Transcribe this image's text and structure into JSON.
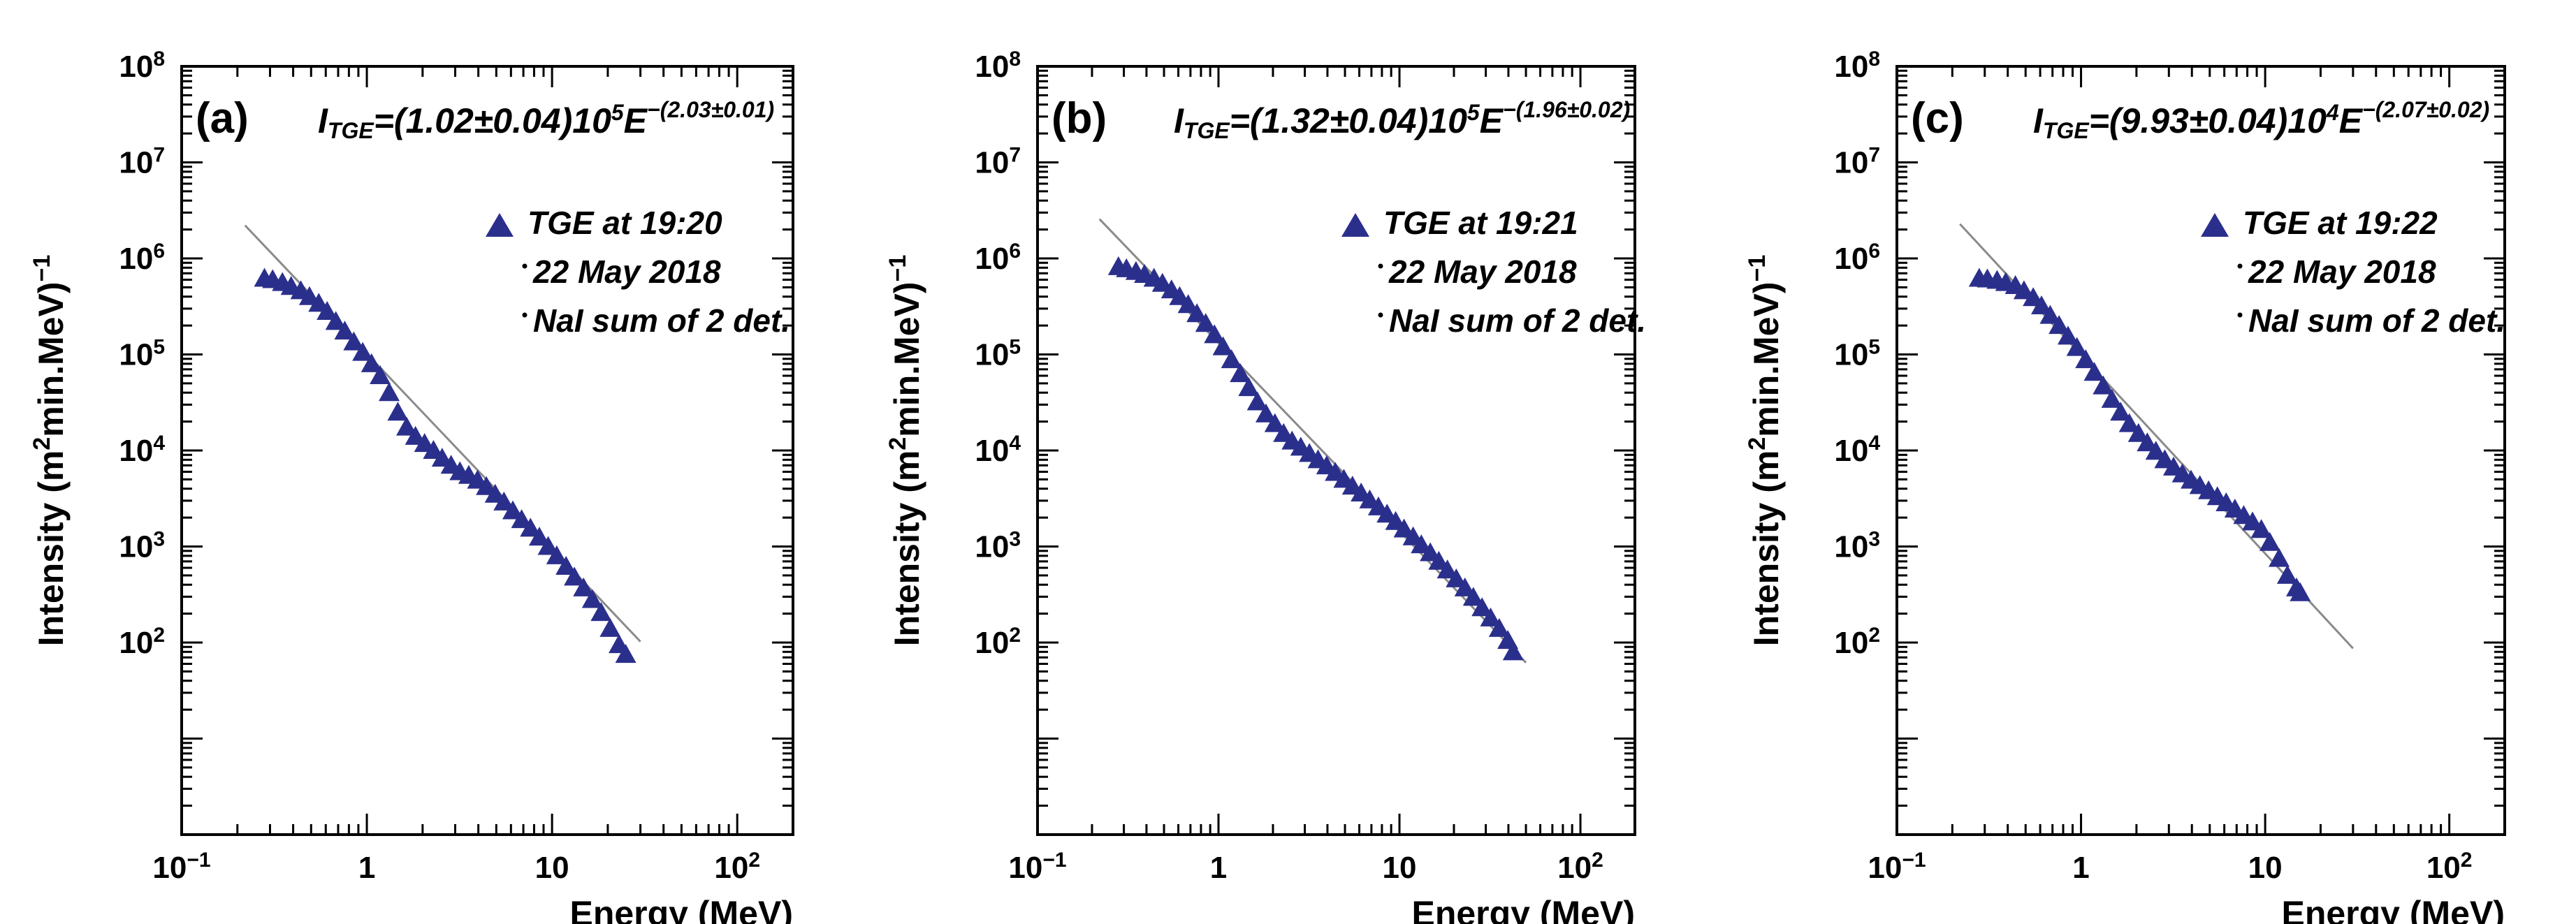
{
  "chart_data": [
    {
      "type": "scatter",
      "panel_label": "(a)",
      "formula": {
        "lhs": "I",
        "lhs_sub": "TGE",
        "body": "=(1.02±0.04)10",
        "exp10": "5",
        "base": "E",
        "exp": "−(2.03±0.01)"
      },
      "legend": {
        "marker_label": "TGE at 19:20",
        "lines": [
          "22 May 2018",
          "NaI sum of 2 det."
        ],
        "placement": "upper-right"
      },
      "xlabel": "Energy (MeV)",
      "ylabel_main": "Intensity (m",
      "ylabel_sup": "2",
      "ylabel_mid": "min.MeV)",
      "ylabel_exp": "−1",
      "x_scale": "log",
      "y_scale": "log",
      "xlim": [
        0.1,
        200
      ],
      "ylim": [
        1,
        100000000
      ],
      "x_ticks": [
        {
          "v": 0.1,
          "base": "10",
          "exp": "−1"
        },
        {
          "v": 1,
          "base": "1",
          "exp": ""
        },
        {
          "v": 10,
          "base": "10",
          "exp": ""
        },
        {
          "v": 100,
          "base": "10",
          "exp": "2"
        }
      ],
      "y_ticks": [
        {
          "v": 100,
          "exp": "2"
        },
        {
          "v": 1000,
          "exp": "3"
        },
        {
          "v": 10000,
          "exp": "4"
        },
        {
          "v": 100000,
          "exp": "5"
        },
        {
          "v": 1000000,
          "exp": "6"
        },
        {
          "v": 10000000,
          "exp": "7"
        },
        {
          "v": 100000000,
          "exp": "8"
        }
      ],
      "fit": {
        "A": 102000,
        "gamma": 2.03,
        "x_range": [
          0.22,
          30
        ]
      },
      "series": [
        {
          "name": "TGE at 19:20",
          "x": [
            0.28,
            0.31,
            0.35,
            0.39,
            0.44,
            0.49,
            0.55,
            0.61,
            0.68,
            0.76,
            0.85,
            0.95,
            1.06,
            1.18,
            1.32,
            1.47,
            1.64,
            1.83,
            2.05,
            2.29,
            2.55,
            2.85,
            3.18,
            3.55,
            3.96,
            4.42,
            4.93,
            5.5,
            6.14,
            6.85,
            7.65,
            8.54,
            9.53,
            10.6,
            11.9,
            13.2,
            14.8,
            16.5,
            18.4,
            20.6,
            23.0,
            25.0
          ],
          "y": [
            620000,
            600000,
            560000,
            510000,
            460000,
            400000,
            340000,
            280000,
            220000,
            175000,
            135000,
            105000,
            80000,
            60000,
            40000,
            25000,
            17500,
            14000,
            11800,
            10000,
            8300,
            7000,
            6000,
            5500,
            4900,
            4200,
            3500,
            2900,
            2350,
            1900,
            1550,
            1250,
            1000,
            800,
            620,
            480,
            370,
            280,
            205,
            140,
            95,
            75
          ]
        }
      ]
    },
    {
      "type": "scatter",
      "panel_label": "(b)",
      "formula": {
        "lhs": "I",
        "lhs_sub": "TGE",
        "body": "=(1.32±0.04)10",
        "exp10": "5",
        "base": "E",
        "exp": "−(1.96±0.02)"
      },
      "legend": {
        "marker_label": "TGE at 19:21",
        "lines": [
          "22 May 2018",
          "NaI sum of 2 det."
        ],
        "placement": "upper-right"
      },
      "xlabel": "Energy (MeV)",
      "ylabel_main": "Intensity (m",
      "ylabel_sup": "2",
      "ylabel_mid": "min.MeV)",
      "ylabel_exp": "−1",
      "x_scale": "log",
      "y_scale": "log",
      "xlim": [
        0.1,
        200
      ],
      "ylim": [
        1,
        100000000
      ],
      "x_ticks": [
        {
          "v": 0.1,
          "base": "10",
          "exp": "−1"
        },
        {
          "v": 1,
          "base": "1",
          "exp": ""
        },
        {
          "v": 10,
          "base": "10",
          "exp": ""
        },
        {
          "v": 100,
          "base": "10",
          "exp": "2"
        }
      ],
      "y_ticks": [
        {
          "v": 100,
          "exp": "2"
        },
        {
          "v": 1000,
          "exp": "3"
        },
        {
          "v": 10000,
          "exp": "4"
        },
        {
          "v": 100000,
          "exp": "5"
        },
        {
          "v": 1000000,
          "exp": "6"
        },
        {
          "v": 10000000,
          "exp": "7"
        },
        {
          "v": 100000000,
          "exp": "8"
        }
      ],
      "fit": {
        "A": 132000,
        "gamma": 1.96,
        "x_range": [
          0.22,
          50
        ]
      },
      "series": [
        {
          "name": "TGE at 19:21",
          "x": [
            0.28,
            0.31,
            0.35,
            0.39,
            0.44,
            0.49,
            0.55,
            0.61,
            0.68,
            0.76,
            0.85,
            0.95,
            1.06,
            1.18,
            1.32,
            1.47,
            1.64,
            1.83,
            2.05,
            2.29,
            2.55,
            2.85,
            3.18,
            3.55,
            3.96,
            4.42,
            4.93,
            5.5,
            6.14,
            6.85,
            7.65,
            8.54,
            9.53,
            10.6,
            11.9,
            13.2,
            14.8,
            16.5,
            18.4,
            20.6,
            23.0,
            25.6,
            28.6,
            31.9,
            35.6,
            39.7,
            42.5
          ],
          "y": [
            820000,
            780000,
            730000,
            680000,
            620000,
            550000,
            470000,
            400000,
            330000,
            265000,
            210000,
            160000,
            120000,
            88000,
            63000,
            45000,
            32000,
            24000,
            19000,
            15000,
            12500,
            10800,
            9300,
            8000,
            6900,
            5900,
            5000,
            4250,
            3600,
            3050,
            2580,
            2170,
            1820,
            1520,
            1260,
            1040,
            860,
            700,
            570,
            460,
            370,
            295,
            230,
            180,
            140,
            105,
            80
          ]
        }
      ]
    },
    {
      "type": "scatter",
      "panel_label": "(c)",
      "formula": {
        "lhs": "I",
        "lhs_sub": "TGE",
        "body": "=(9.93±0.04)10",
        "exp10": "4",
        "base": "E",
        "exp": "−(2.07±0.02)"
      },
      "legend": {
        "marker_label": "TGE at 19:22",
        "lines": [
          "22 May 2018",
          "NaI sum of 2 det."
        ],
        "placement": "upper-right"
      },
      "xlabel": "Energy (MeV)",
      "ylabel_main": "Intensity (m",
      "ylabel_sup": "2",
      "ylabel_mid": "min.MeV)",
      "ylabel_exp": "−1",
      "x_scale": "log",
      "y_scale": "log",
      "xlim": [
        0.1,
        200
      ],
      "ylim": [
        1,
        100000000
      ],
      "x_ticks": [
        {
          "v": 0.1,
          "base": "10",
          "exp": "−1"
        },
        {
          "v": 1,
          "base": "1",
          "exp": ""
        },
        {
          "v": 10,
          "base": "10",
          "exp": ""
        },
        {
          "v": 100,
          "base": "10",
          "exp": "2"
        }
      ],
      "y_ticks": [
        {
          "v": 100,
          "exp": "2"
        },
        {
          "v": 1000,
          "exp": "3"
        },
        {
          "v": 10000,
          "exp": "4"
        },
        {
          "v": 100000,
          "exp": "5"
        },
        {
          "v": 1000000,
          "exp": "6"
        },
        {
          "v": 10000000,
          "exp": "7"
        },
        {
          "v": 100000000,
          "exp": "8"
        }
      ],
      "fit": {
        "A": 99300,
        "gamma": 2.07,
        "x_range": [
          0.22,
          30
        ]
      },
      "series": [
        {
          "name": "TGE at 19:22",
          "x": [
            0.28,
            0.31,
            0.35,
            0.39,
            0.44,
            0.49,
            0.55,
            0.61,
            0.68,
            0.76,
            0.85,
            0.95,
            1.06,
            1.18,
            1.32,
            1.47,
            1.64,
            1.83,
            2.05,
            2.29,
            2.55,
            2.85,
            3.18,
            3.55,
            3.96,
            4.42,
            4.93,
            5.5,
            6.14,
            6.85,
            7.65,
            8.54,
            9.53,
            10.6,
            11.9,
            13.2,
            14.8,
            15.5
          ],
          "y": [
            620000,
            610000,
            590000,
            560000,
            520000,
            460000,
            390000,
            320000,
            255000,
            200000,
            155000,
            118000,
            88000,
            65000,
            47000,
            34000,
            25000,
            19000,
            15000,
            12000,
            9800,
            8000,
            6700,
            5700,
            4900,
            4300,
            3800,
            3300,
            2850,
            2450,
            2100,
            1800,
            1500,
            1100,
            750,
            500,
            370,
            330
          ]
        }
      ]
    }
  ]
}
